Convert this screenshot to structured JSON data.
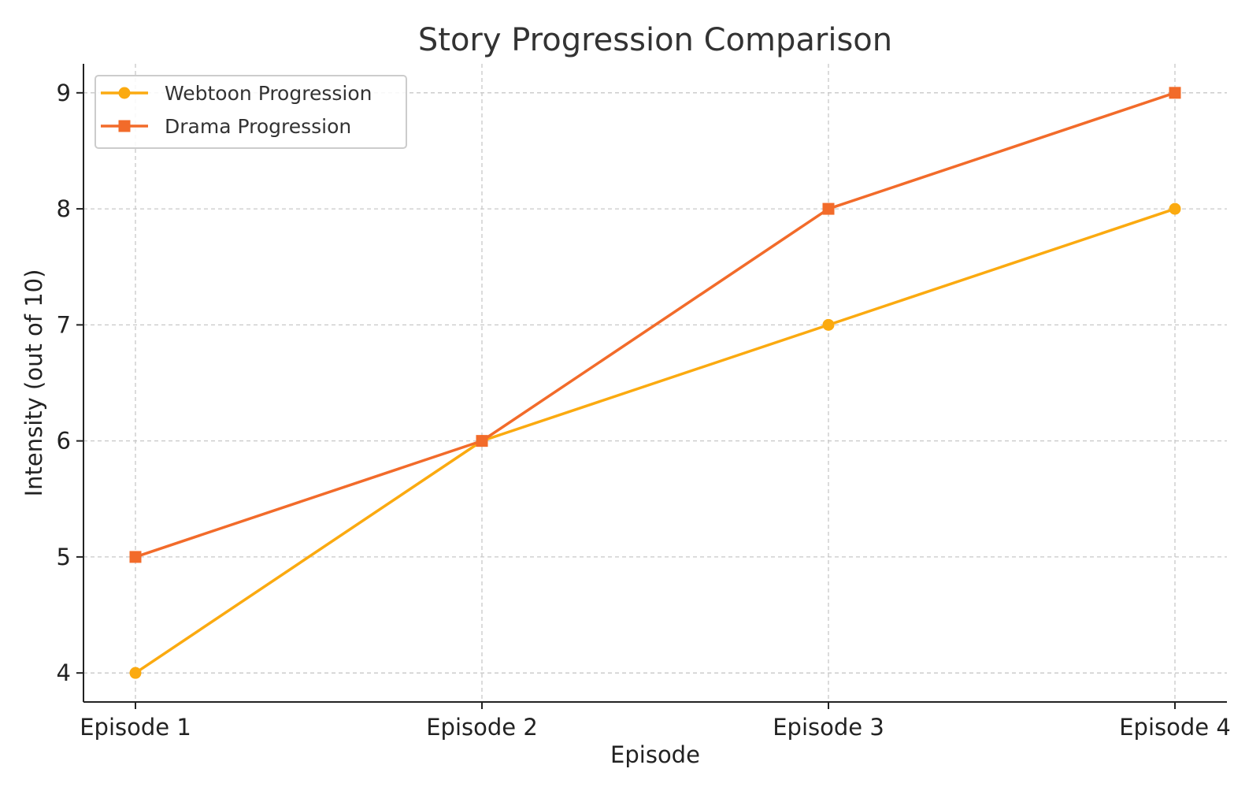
{
  "chart_data": {
    "type": "line",
    "title": "Story Progression Comparison",
    "xlabel": "Episode",
    "ylabel": "Intensity (out of 10)",
    "categories": [
      "Episode 1",
      "Episode 2",
      "Episode 3",
      "Episode 4"
    ],
    "ylim": [
      3.75,
      9.25
    ],
    "yticks": [
      4,
      5,
      6,
      7,
      8,
      9
    ],
    "grid": true,
    "grid_style": "dashed",
    "legend_position": "top-left",
    "series": [
      {
        "name": "Webtoon Progression",
        "values": [
          4,
          6,
          7,
          8
        ],
        "color": "#FBAA10",
        "marker": "circle"
      },
      {
        "name": "Drama Progression",
        "values": [
          5,
          6,
          8,
          9
        ],
        "color": "#F26B2A",
        "marker": "square"
      }
    ]
  }
}
